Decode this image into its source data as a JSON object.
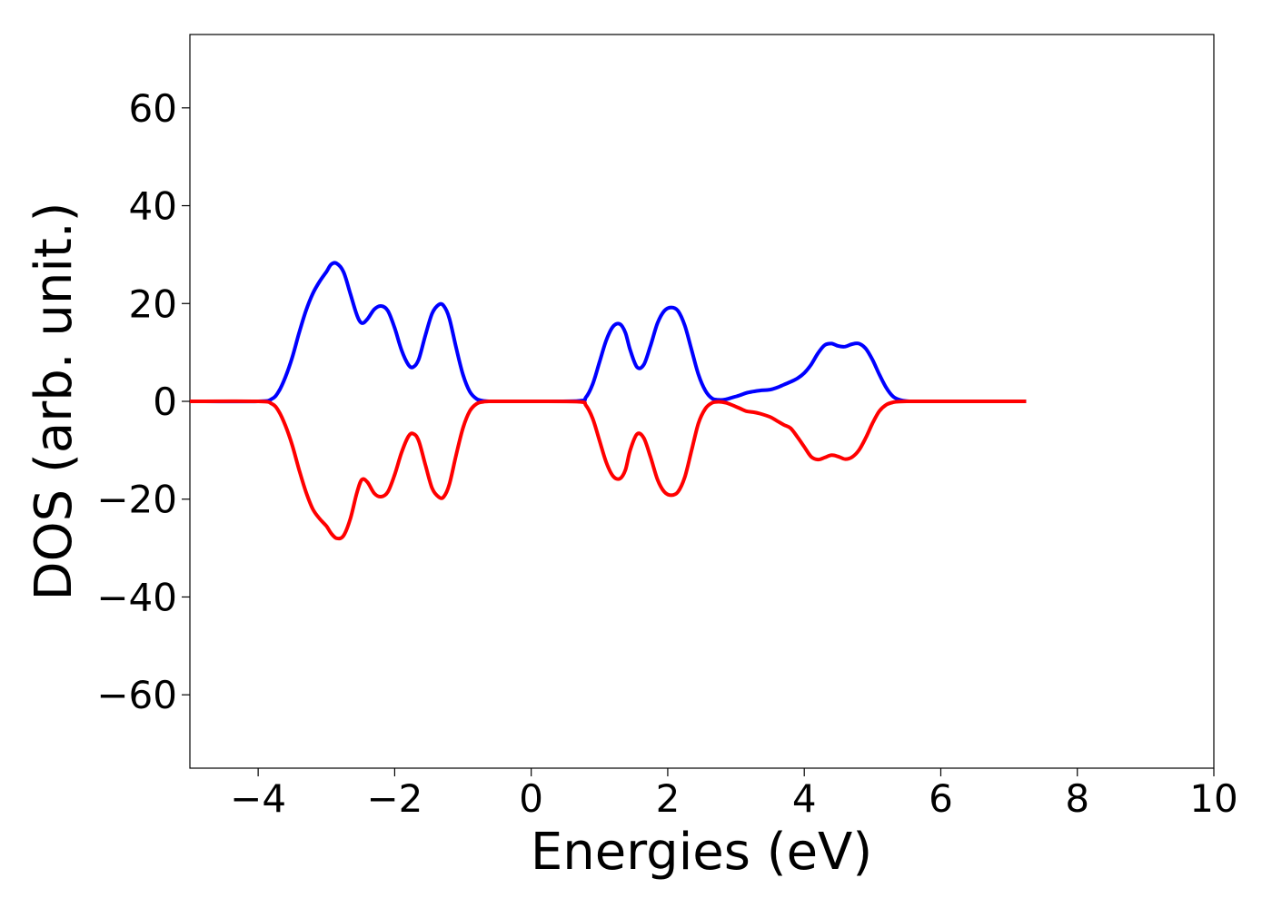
{
  "chart_data": {
    "type": "line",
    "title": "",
    "xlabel": "Energies (eV)",
    "ylabel": "DOS (arb. unit.)",
    "xlim": [
      -5,
      10
    ],
    "ylim": [
      -75,
      75
    ],
    "xticks": [
      -4,
      -2,
      0,
      2,
      4,
      6,
      8,
      10
    ],
    "xtick_labels": [
      "−4",
      "−2",
      "0",
      "2",
      "4",
      "6",
      "8",
      "10"
    ],
    "yticks": [
      60,
      40,
      20,
      0,
      -20,
      -40,
      -60
    ],
    "ytick_labels": [
      "60",
      "40",
      "20",
      "0",
      "−20",
      "−40",
      "−60"
    ],
    "grid": false,
    "legend": "none",
    "series": [
      {
        "color": "#0000ff",
        "x": [
          -5.0,
          -4.0,
          -3.8,
          -3.7,
          -3.6,
          -3.5,
          -3.4,
          -3.3,
          -3.2,
          -3.1,
          -3.0,
          -2.93,
          -2.85,
          -2.75,
          -2.65,
          -2.55,
          -2.48,
          -2.4,
          -2.3,
          -2.2,
          -2.1,
          -2.0,
          -1.9,
          -1.8,
          -1.73,
          -1.65,
          -1.55,
          -1.45,
          -1.35,
          -1.28,
          -1.2,
          -1.1,
          -1.0,
          -0.9,
          -0.8,
          -0.7,
          -0.6,
          -0.5,
          0.0,
          0.7,
          0.8,
          0.9,
          1.0,
          1.1,
          1.2,
          1.3,
          1.38,
          1.45,
          1.55,
          1.65,
          1.75,
          1.85,
          1.95,
          2.05,
          2.15,
          2.25,
          2.35,
          2.45,
          2.55,
          2.65,
          2.75,
          2.85,
          2.95,
          3.05,
          3.15,
          3.25,
          3.35,
          3.5,
          3.6,
          3.7,
          3.8,
          3.9,
          4.0,
          4.1,
          4.2,
          4.3,
          4.4,
          4.5,
          4.6,
          4.7,
          4.8,
          4.9,
          5.0,
          5.1,
          5.2,
          5.3,
          5.4,
          5.5,
          5.6,
          5.8,
          6.5,
          7.25
        ],
        "y": [
          0,
          0,
          0.5,
          2,
          5,
          9,
          14,
          18.5,
          22,
          24.5,
          26.5,
          28,
          28.2,
          26.5,
          22,
          17.5,
          16,
          16.8,
          18.8,
          19.5,
          18.5,
          15,
          10.5,
          7.5,
          7,
          8.5,
          13.5,
          18,
          19.8,
          19.5,
          17,
          11,
          5.5,
          2,
          0.5,
          0.1,
          0,
          0,
          0,
          0.1,
          0.8,
          3.5,
          8,
          12.5,
          15.3,
          15.8,
          14,
          10.5,
          7,
          7.5,
          11.5,
          16,
          18.5,
          19.2,
          18.5,
          15.5,
          10.5,
          5.5,
          2.2,
          0.6,
          0.3,
          0.4,
          0.8,
          1.2,
          1.7,
          2,
          2.2,
          2.4,
          2.8,
          3.4,
          4,
          4.7,
          5.8,
          7.5,
          9.8,
          11.5,
          11.8,
          11.3,
          11.2,
          11.7,
          11.8,
          10.8,
          8.5,
          5.5,
          2.8,
          1,
          0.3,
          0.05,
          0,
          0,
          0,
          0
        ]
      },
      {
        "color": "#ff0000",
        "x": [
          -5.0,
          -4.0,
          -3.8,
          -3.7,
          -3.6,
          -3.5,
          -3.4,
          -3.3,
          -3.2,
          -3.1,
          -3.0,
          -2.93,
          -2.85,
          -2.75,
          -2.65,
          -2.55,
          -2.48,
          -2.4,
          -2.3,
          -2.2,
          -2.1,
          -2.0,
          -1.9,
          -1.8,
          -1.73,
          -1.65,
          -1.55,
          -1.45,
          -1.35,
          -1.28,
          -1.2,
          -1.1,
          -1.0,
          -0.9,
          -0.8,
          -0.7,
          -0.6,
          -0.5,
          0.0,
          0.7,
          0.8,
          0.9,
          1.0,
          1.1,
          1.2,
          1.3,
          1.38,
          1.45,
          1.55,
          1.65,
          1.75,
          1.85,
          1.95,
          2.05,
          2.15,
          2.25,
          2.35,
          2.45,
          2.55,
          2.65,
          2.75,
          2.85,
          2.95,
          3.05,
          3.15,
          3.25,
          3.35,
          3.5,
          3.6,
          3.7,
          3.8,
          3.9,
          4.0,
          4.1,
          4.2,
          4.3,
          4.4,
          4.5,
          4.6,
          4.7,
          4.8,
          4.9,
          5.0,
          5.1,
          5.2,
          5.3,
          5.4,
          5.5,
          5.6,
          5.8,
          6.5,
          7.25
        ],
        "y": [
          0,
          0,
          -0.5,
          -2,
          -5,
          -9,
          -14,
          -18.5,
          -22,
          -24,
          -25.5,
          -27,
          -28,
          -27.5,
          -24,
          -18.5,
          -16,
          -16.5,
          -18.8,
          -19.5,
          -18.5,
          -15,
          -10.5,
          -7.2,
          -6.6,
          -8,
          -13,
          -17.8,
          -19.6,
          -19.5,
          -17,
          -11,
          -5.5,
          -2,
          -0.5,
          -0.1,
          0,
          0,
          0,
          -0.1,
          -0.8,
          -3.5,
          -8,
          -12.5,
          -15.3,
          -15.8,
          -14,
          -10,
          -6.7,
          -7.5,
          -11.5,
          -16,
          -18.5,
          -19.2,
          -18.5,
          -15.5,
          -10,
          -4.5,
          -1.5,
          -0.3,
          -0.1,
          -0.3,
          -0.8,
          -1.4,
          -2,
          -2.2,
          -2.5,
          -3.2,
          -4,
          -4.8,
          -5.5,
          -7.3,
          -9.3,
          -11.3,
          -11.9,
          -11.5,
          -11,
          -11.3,
          -11.8,
          -11.4,
          -10,
          -7.5,
          -4.5,
          -2,
          -0.7,
          -0.2,
          -0.05,
          0,
          0,
          0,
          0,
          0
        ]
      }
    ]
  }
}
